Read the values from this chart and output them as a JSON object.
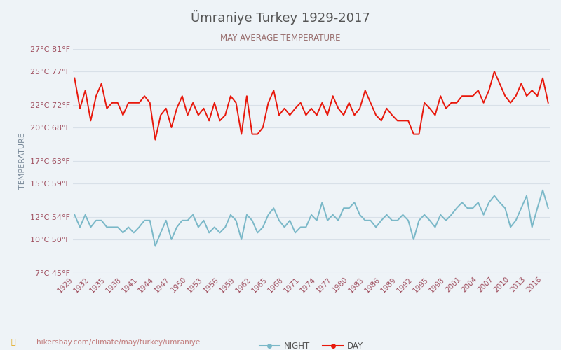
{
  "title": "Ümraniye Turkey 1929-2017",
  "subtitle": "MAY AVERAGE TEMPERATURE",
  "ylabel": "TEMPERATURE",
  "footer": "hikersbay.com/climate/may/turkey/umraniye",
  "years": [
    1929,
    1930,
    1931,
    1932,
    1933,
    1934,
    1935,
    1936,
    1937,
    1938,
    1939,
    1940,
    1941,
    1942,
    1943,
    1944,
    1945,
    1946,
    1947,
    1948,
    1949,
    1950,
    1951,
    1952,
    1953,
    1954,
    1955,
    1956,
    1957,
    1958,
    1959,
    1960,
    1961,
    1962,
    1963,
    1964,
    1965,
    1966,
    1967,
    1968,
    1969,
    1970,
    1971,
    1972,
    1973,
    1974,
    1975,
    1976,
    1977,
    1978,
    1979,
    1980,
    1981,
    1982,
    1983,
    1984,
    1985,
    1986,
    1987,
    1988,
    1989,
    1990,
    1991,
    1992,
    1993,
    1994,
    1995,
    1996,
    1997,
    1998,
    1999,
    2000,
    2001,
    2002,
    2003,
    2004,
    2005,
    2006,
    2007,
    2008,
    2009,
    2010,
    2011,
    2012,
    2013,
    2014,
    2015,
    2016,
    2017
  ],
  "day_temps": [
    24.4,
    21.7,
    23.3,
    20.6,
    22.8,
    23.9,
    21.7,
    22.2,
    22.2,
    21.1,
    22.2,
    22.2,
    22.2,
    22.8,
    22.2,
    18.9,
    21.1,
    21.7,
    20.0,
    21.7,
    22.8,
    21.1,
    22.2,
    21.1,
    21.7,
    20.6,
    22.2,
    20.6,
    21.1,
    22.8,
    22.2,
    19.4,
    22.8,
    19.4,
    19.4,
    20.0,
    22.2,
    23.3,
    21.1,
    21.7,
    21.1,
    21.7,
    22.2,
    21.1,
    21.7,
    21.1,
    22.2,
    21.1,
    22.8,
    21.7,
    21.1,
    22.2,
    21.1,
    21.7,
    23.3,
    22.2,
    21.1,
    20.6,
    21.7,
    21.1,
    20.6,
    20.6,
    20.6,
    19.4,
    19.4,
    22.2,
    21.7,
    21.1,
    22.8,
    21.7,
    22.2,
    22.2,
    22.8,
    22.8,
    22.8,
    23.3,
    22.2,
    23.3,
    25.0,
    23.9,
    22.8,
    22.2,
    22.8,
    23.9,
    22.8,
    23.3,
    22.8,
    24.4,
    22.2
  ],
  "night_temps": [
    12.2,
    11.1,
    12.2,
    11.1,
    11.7,
    11.7,
    11.1,
    11.1,
    11.1,
    10.6,
    11.1,
    10.6,
    11.1,
    11.7,
    11.7,
    9.4,
    10.6,
    11.7,
    10.0,
    11.1,
    11.7,
    11.7,
    12.2,
    11.1,
    11.7,
    10.6,
    11.1,
    10.6,
    11.1,
    12.2,
    11.7,
    10.0,
    12.2,
    11.7,
    10.6,
    11.1,
    12.2,
    12.8,
    11.7,
    11.1,
    11.7,
    10.6,
    11.1,
    11.1,
    12.2,
    11.7,
    13.3,
    11.7,
    12.2,
    11.7,
    12.8,
    12.8,
    13.3,
    12.2,
    11.7,
    11.7,
    11.1,
    11.7,
    12.2,
    11.7,
    11.7,
    12.2,
    11.7,
    10.0,
    11.7,
    12.2,
    11.7,
    11.1,
    12.2,
    11.7,
    12.2,
    12.8,
    13.3,
    12.8,
    12.8,
    13.3,
    12.2,
    13.3,
    13.9,
    13.3,
    12.8,
    11.1,
    11.7,
    12.8,
    13.9,
    11.1,
    12.8,
    14.4,
    12.8
  ],
  "yticks_c": [
    7,
    10,
    12,
    15,
    17,
    20,
    22,
    25,
    27
  ],
  "yticks_f": [
    45,
    50,
    54,
    59,
    63,
    68,
    72,
    77,
    81
  ],
  "xtick_years": [
    1929,
    1932,
    1935,
    1938,
    1941,
    1944,
    1947,
    1950,
    1953,
    1956,
    1959,
    1962,
    1965,
    1968,
    1971,
    1974,
    1977,
    1980,
    1983,
    1986,
    1989,
    1992,
    1995,
    1998,
    2001,
    2004,
    2007,
    2010,
    2013,
    2016
  ],
  "ylim": [
    7,
    27
  ],
  "day_color": "#e8180c",
  "night_color": "#7ab8c8",
  "title_color": "#555555",
  "subtitle_color": "#9a7070",
  "tick_label_color": "#a05060",
  "ylabel_color": "#7a8a9a",
  "grid_color": "#d8e0e8",
  "bg_color": "#eef3f7",
  "footer_color": "#c07878",
  "footer_icon_color": "#e0a000",
  "line_width": 1.4
}
